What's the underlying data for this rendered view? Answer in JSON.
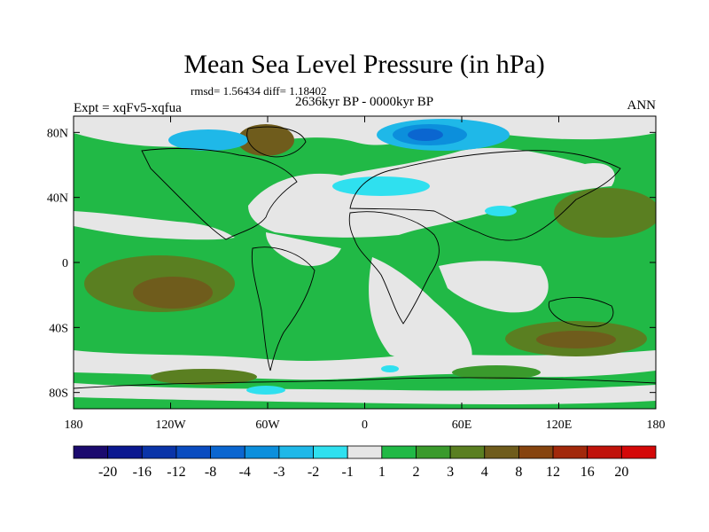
{
  "chart_data": {
    "type": "heatmap",
    "title": "Mean Sea Level Pressure (in hPa)",
    "stats": "rmsd= 1.56434 diff= 1.18402",
    "left_label": "Expt = xqFv5-xqfua",
    "center_label": "2636kyr BP - 0000kyr BP",
    "right_label": "ANN",
    "x_ticks": [
      "180",
      "120W",
      "60W",
      "0",
      "60E",
      "120E",
      "180"
    ],
    "y_ticks": [
      "80N",
      "40N",
      "0",
      "40S",
      "80S"
    ],
    "lon_range": [
      -180,
      180
    ],
    "lat_range": [
      -90,
      90
    ],
    "colorbar": {
      "labels": [
        "-20",
        "-16",
        "-12",
        "-8",
        "-4",
        "-3",
        "-2",
        "-1",
        "1",
        "2",
        "3",
        "4",
        "8",
        "12",
        "16",
        "20"
      ],
      "colors": [
        "#1b0a6e",
        "#0b1890",
        "#0a34a8",
        "#0a4cc0",
        "#0b66d0",
        "#0c8fdc",
        "#1fb8e8",
        "#2fe0ef",
        "#e6e6e6",
        "#21b946",
        "#3a9a2c",
        "#5a7f21",
        "#6f5c1c",
        "#86440f",
        "#a2290b",
        "#c0130b",
        "#d40808"
      ]
    }
  }
}
